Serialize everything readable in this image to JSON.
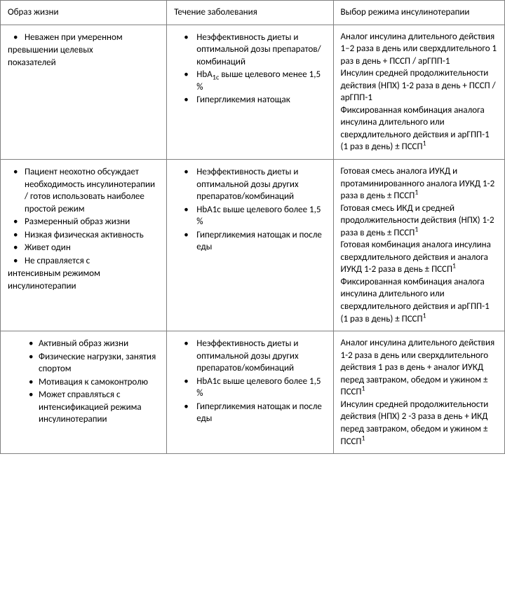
{
  "header": {
    "col1": "Образ жизни",
    "col2": "Течение заболевания",
    "col3": "Выбор режима инсулинотерапии"
  },
  "rows": [
    {
      "lifestyle": {
        "bullets": [
          "Неважен при умеренном"
        ],
        "freeLines": [
          "превышении целевых",
          "показателей"
        ]
      },
      "course": {
        "bullets": [
          "Неэффективность диеты и оптимальной дозы препаратов/комбинаций",
          {
            "html": "HbA<span class=\"sub\">1c</span> выше целевого менее 1,5 %"
          },
          " Гипергликемия натощак"
        ]
      },
      "choice": {
        "html": "Аналог инсулина длительного действия 1–2 раза в день или сверхдлительного 1 раз в день + ПССП / арГПП-1<br>Инсулин средней продолжительности действия (НПХ) 1-2 раза в день + ПССП / арГПП-1<br>Фиксированная комбинация аналога инсулина длительного или сверхдлительного действия и арГПП-1 (1 раз в день) ± ПССП<sup>1</sup>"
      }
    },
    {
      "lifestyle": {
        "bullets": [
          "Пациент неохотно обсуждает необходимость инсулинотерапии / готов использовать наиболее простой режим",
          "Размерненный образ жизни",
          "Низкая физическая активность",
          "Живет один",
          " Не справляется с"
        ],
        "bullets_fix": [
          "Пациент неохотно обсуждает необходимость инсулинотерапии / готов использовать наиболее простой режим",
          "Размеренный образ жизни",
          "Низкая физическая активность",
          "Живет один",
          " Не справляется с"
        ],
        "freeLines": [
          "интенсивным режимом",
          "инсулинотерапии"
        ]
      },
      "course": {
        "bullets": [
          "Неэффективность диеты и оптимальной дозы других препаратов/комбинаций",
          "HbA1c выше целевого более 1,5 %",
          " Гипергликемия натощак и после еды"
        ]
      },
      "choice": {
        "html": "Готовая смесь аналога ИУКД и протаминированного аналога ИУКД 1-2 раза в день ± ПССП<sup>1</sup><br>Готовая смесь ИКД и средней продолжительности действия (НПХ) 1-2 раза в день ± ПССП<sup>1</sup><br>Готовая комбинация аналога инсулина сверхдлительного действия и аналога ИУКД 1-2 раза в день ± ПССП<sup>1</sup><br>Фиксированная комбинация аналога инсулина длительного или сверхдлительного действия и арГПП-1 (1 раз в день) ± ПССП<sup>1</sup>"
      }
    },
    {
      "lifestyle": {
        "bullets": [
          "Активный образ жизни",
          "Физические нагрузки, занятия спортом",
          "Мотивация к самоконтролю",
          "Может справляться с интенсификацией режима инсулинотерапии"
        ],
        "indentMore": true
      },
      "course": {
        "bullets": [
          "Неэффективность диеты и оптимальной дозы других препаратов/комбинаций",
          "HbA1c выше целевого более 1,5 %",
          " Гипергликемия натощак и после еды"
        ]
      },
      "choice": {
        "html": "Аналог инсулина длительного действия 1-2 раза в день или сверхдлительного действия 1 раз в день + аналог ИУКД перед завтраком, обедом и ужином ± ПССП<sup>1</sup><br>Инсулин средней продолжительности действия (НПХ) 2 -3 раза в день + ИКД перед завтраком, обедом и ужином ± ПССП<sup>1</sup>"
      }
    }
  ]
}
